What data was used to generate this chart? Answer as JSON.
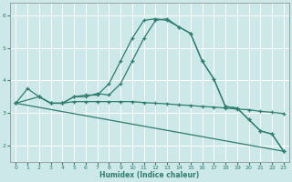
{
  "xlabel": "Humidex (Indice chaleur)",
  "background_color": "#cce8e8",
  "grid_color": "#ffffff",
  "line_color": "#2e7d6e",
  "xlim": [
    -0.5,
    23.5
  ],
  "ylim": [
    1.5,
    6.4
  ],
  "xticks": [
    0,
    1,
    2,
    3,
    4,
    5,
    6,
    7,
    8,
    9,
    10,
    11,
    12,
    13,
    14,
    15,
    16,
    17,
    18,
    19,
    20,
    21,
    22,
    23
  ],
  "yticks": [
    2,
    3,
    4,
    5,
    6
  ],
  "curve1_x": [
    0,
    1,
    2,
    3,
    4,
    5,
    6,
    7,
    8,
    9,
    10,
    11,
    12,
    13,
    14,
    15,
    16,
    17,
    18,
    19,
    20,
    21,
    22,
    23
  ],
  "curve1_y": [
    3.3,
    3.75,
    3.5,
    3.3,
    3.3,
    3.5,
    3.55,
    3.55,
    3.9,
    4.6,
    5.3,
    5.85,
    5.9,
    5.85,
    5.65,
    5.45,
    4.6,
    4.05,
    3.2,
    3.15,
    2.8,
    2.45,
    2.35,
    1.82
  ],
  "curve2_x": [
    2,
    3,
    4,
    5,
    6,
    7,
    8,
    9,
    10,
    11,
    12,
    13,
    14,
    15,
    16,
    17,
    18,
    19,
    20,
    21,
    22,
    23
  ],
  "curve2_y": [
    3.5,
    3.3,
    3.3,
    3.5,
    3.5,
    3.6,
    3.55,
    3.9,
    4.6,
    5.3,
    5.85,
    5.9,
    5.65,
    5.45,
    4.6,
    4.05,
    3.2,
    3.15,
    2.8,
    2.45,
    2.35,
    1.82
  ],
  "curve3_x": [
    0,
    2,
    3,
    4,
    5,
    6,
    7,
    8,
    9,
    10,
    11,
    12,
    13,
    14,
    15,
    16,
    17,
    18,
    19,
    20,
    21,
    22,
    23
  ],
  "curve3_y": [
    3.3,
    3.5,
    3.3,
    3.3,
    3.35,
    3.35,
    3.35,
    3.35,
    3.35,
    3.35,
    3.32,
    3.3,
    3.28,
    3.25,
    3.23,
    3.2,
    3.18,
    3.15,
    3.12,
    3.1,
    3.05,
    3.02,
    2.98
  ],
  "curve4_x": [
    0,
    23
  ],
  "curve4_y": [
    3.3,
    1.82
  ]
}
